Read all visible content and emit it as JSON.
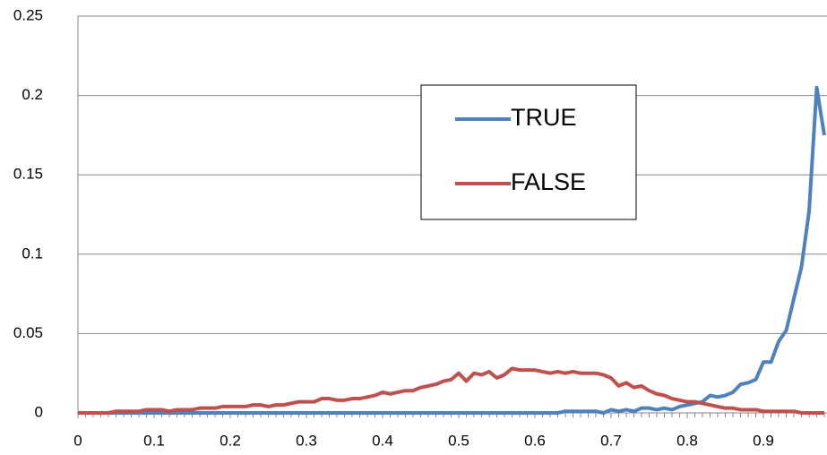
{
  "chart_data": {
    "type": "line",
    "x": [
      0,
      0.01,
      0.02,
      0.03,
      0.04,
      0.05,
      0.06,
      0.07,
      0.08,
      0.09,
      0.1,
      0.11,
      0.12,
      0.13,
      0.14,
      0.15,
      0.16,
      0.17,
      0.18,
      0.19,
      0.2,
      0.21,
      0.22,
      0.23,
      0.24,
      0.25,
      0.26,
      0.27,
      0.28,
      0.29,
      0.3,
      0.31,
      0.32,
      0.33,
      0.34,
      0.35,
      0.36,
      0.37,
      0.38,
      0.39,
      0.4,
      0.41,
      0.42,
      0.43,
      0.44,
      0.45,
      0.46,
      0.47,
      0.48,
      0.49,
      0.5,
      0.51,
      0.52,
      0.53,
      0.54,
      0.55,
      0.56,
      0.57,
      0.58,
      0.59,
      0.6,
      0.61,
      0.62,
      0.63,
      0.64,
      0.65,
      0.66,
      0.67,
      0.68,
      0.69,
      0.7,
      0.71,
      0.72,
      0.73,
      0.74,
      0.75,
      0.76,
      0.77,
      0.78,
      0.79,
      0.8,
      0.81,
      0.82,
      0.83,
      0.84,
      0.85,
      0.86,
      0.87,
      0.88,
      0.89,
      0.9,
      0.91,
      0.92,
      0.93,
      0.94,
      0.95,
      0.96,
      0.97,
      0.98
    ],
    "series": [
      {
        "name": "TRUE",
        "color": "#4f81bd",
        "values": [
          0,
          0,
          0,
          0,
          0,
          0,
          0,
          0,
          0,
          0,
          0,
          0,
          0,
          0,
          0,
          0,
          0,
          0,
          0,
          0,
          0,
          0,
          0,
          0,
          0,
          0,
          0,
          0,
          0,
          0,
          0,
          0,
          0,
          0,
          0,
          0,
          0,
          0,
          0,
          0,
          0,
          0,
          0,
          0,
          0,
          0,
          0,
          0,
          0,
          0,
          0,
          0,
          0,
          0,
          0,
          0,
          0,
          0,
          0,
          0,
          0,
          0,
          0,
          0,
          0.001,
          0.001,
          0.001,
          0.001,
          0.001,
          0,
          0.002,
          0.001,
          0.002,
          0.001,
          0.003,
          0.003,
          0.002,
          0.003,
          0.002,
          0.004,
          0.005,
          0.006,
          0.007,
          0.011,
          0.01,
          0.011,
          0.013,
          0.018,
          0.019,
          0.021,
          0.032,
          0.032,
          0.045,
          0.052,
          0.072,
          0.092,
          0.127,
          0.205,
          0.175
        ]
      },
      {
        "name": "FALSE",
        "color": "#c0504d",
        "values": [
          0,
          0,
          0,
          0,
          0,
          0.001,
          0.001,
          0.001,
          0.001,
          0.002,
          0.002,
          0.002,
          0.001,
          0.002,
          0.002,
          0.002,
          0.003,
          0.003,
          0.003,
          0.004,
          0.004,
          0.004,
          0.004,
          0.005,
          0.005,
          0.004,
          0.005,
          0.005,
          0.006,
          0.007,
          0.007,
          0.007,
          0.009,
          0.009,
          0.008,
          0.008,
          0.009,
          0.009,
          0.01,
          0.011,
          0.013,
          0.012,
          0.013,
          0.014,
          0.014,
          0.016,
          0.017,
          0.018,
          0.02,
          0.021,
          0.025,
          0.02,
          0.025,
          0.024,
          0.026,
          0.022,
          0.024,
          0.028,
          0.027,
          0.027,
          0.027,
          0.026,
          0.025,
          0.026,
          0.025,
          0.026,
          0.025,
          0.025,
          0.025,
          0.024,
          0.022,
          0.017,
          0.019,
          0.016,
          0.017,
          0.014,
          0.012,
          0.011,
          0.009,
          0.008,
          0.007,
          0.007,
          0.006,
          0.005,
          0.004,
          0.003,
          0.003,
          0.002,
          0.002,
          0.002,
          0.001,
          0.001,
          0.001,
          0.001,
          0.001,
          0,
          0,
          0,
          0
        ]
      }
    ],
    "xlim": [
      0,
      0.98
    ],
    "xticks": [
      0,
      0.1,
      0.2,
      0.3,
      0.4,
      0.5,
      0.6,
      0.7,
      0.8,
      0.9
    ],
    "ylim": [
      0,
      0.25
    ],
    "yticks": [
      0,
      0.05,
      0.1,
      0.15,
      0.2,
      0.25
    ],
    "grid": true,
    "legend": "center"
  }
}
